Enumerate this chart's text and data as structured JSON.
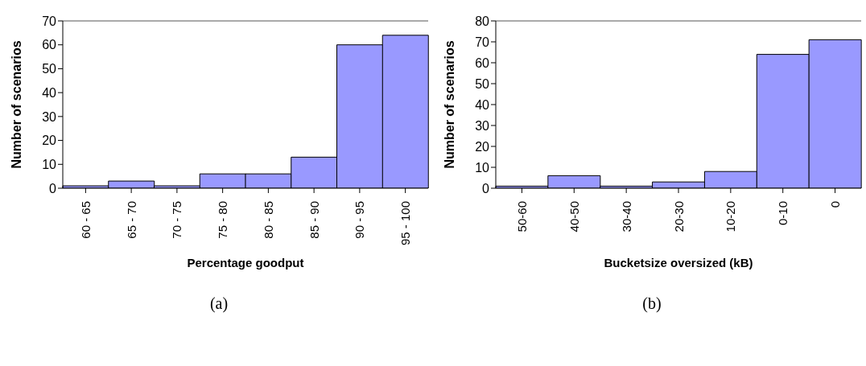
{
  "chart_data": [
    {
      "type": "bar",
      "xlabel": "Percentage goodput",
      "ylabel": "Number of scenarios",
      "categories": [
        "60 - 65",
        "65 - 70",
        "70 - 75",
        "75 - 80",
        "80 - 85",
        "85 - 90",
        "90 - 95",
        "95 - 100"
      ],
      "values": [
        1,
        3,
        1,
        6,
        6,
        13,
        60,
        64
      ],
      "color": "#9999ff",
      "ylim": [
        0,
        70
      ],
      "yticks": [
        0,
        10,
        20,
        30,
        40,
        50,
        60,
        70
      ],
      "grid": false,
      "legend": false,
      "annotations": [
        "(a)"
      ]
    },
    {
      "type": "bar",
      "xlabel": "Bucketsize oversized (kB)",
      "ylabel": "Number of scenarios",
      "categories": [
        "50-60",
        "40-50",
        "30-40",
        "20-30",
        "10-20",
        "0-10",
        "0"
      ],
      "values": [
        1,
        6,
        1,
        3,
        8,
        64,
        71
      ],
      "color": "#9999ff",
      "ylim": [
        0,
        80
      ],
      "yticks": [
        0,
        10,
        20,
        30,
        40,
        50,
        60,
        70,
        80
      ],
      "grid": false,
      "legend": false,
      "annotations": [
        "(b)"
      ]
    }
  ]
}
